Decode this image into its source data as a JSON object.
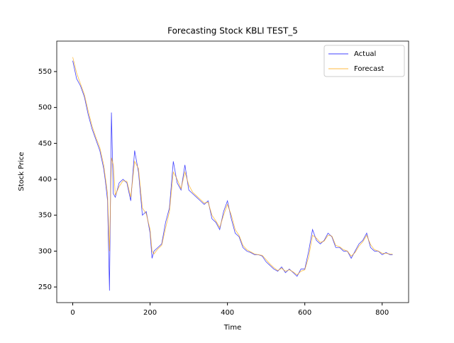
{
  "chart_data": {
    "type": "line",
    "title": "Forecasting Stock KBLI TEST_5",
    "xlabel": "Time",
    "ylabel": "Stock Price",
    "x": [
      0,
      10,
      20,
      30,
      40,
      50,
      60,
      70,
      80,
      85,
      90,
      95,
      100,
      105,
      110,
      120,
      130,
      140,
      150,
      160,
      170,
      180,
      190,
      200,
      205,
      210,
      220,
      230,
      240,
      250,
      260,
      270,
      280,
      290,
      300,
      310,
      320,
      330,
      340,
      350,
      360,
      370,
      380,
      390,
      400,
      410,
      420,
      430,
      440,
      450,
      460,
      470,
      480,
      490,
      500,
      510,
      520,
      530,
      540,
      550,
      560,
      570,
      580,
      590,
      600,
      610,
      620,
      630,
      640,
      650,
      660,
      670,
      680,
      690,
      700,
      710,
      720,
      730,
      740,
      750,
      760,
      770,
      780,
      790,
      800,
      810,
      820,
      827
    ],
    "series": [
      {
        "name": "Actual",
        "color": "#0000ff",
        "values": [
          565,
          540,
          530,
          515,
          490,
          470,
          455,
          440,
          415,
          395,
          370,
          245,
          493,
          380,
          375,
          395,
          400,
          395,
          370,
          440,
          410,
          350,
          355,
          325,
          290,
          300,
          305,
          310,
          340,
          360,
          425,
          395,
          385,
          420,
          385,
          380,
          375,
          370,
          365,
          370,
          345,
          340,
          330,
          355,
          370,
          345,
          325,
          320,
          305,
          300,
          298,
          295,
          295,
          293,
          285,
          280,
          275,
          272,
          278,
          270,
          275,
          270,
          265,
          275,
          275,
          300,
          330,
          315,
          310,
          315,
          325,
          320,
          305,
          305,
          300,
          300,
          290,
          300,
          310,
          315,
          325,
          305,
          300,
          300,
          295,
          298,
          295,
          295
        ]
      },
      {
        "name": "Forecast",
        "color": "#ffa500",
        "values": [
          570,
          548,
          533,
          518,
          495,
          474,
          458,
          444,
          420,
          400,
          380,
          300,
          430,
          420,
          378,
          390,
          398,
          397,
          375,
          425,
          415,
          360,
          352,
          330,
          300,
          296,
          303,
          308,
          332,
          355,
          410,
          400,
          387,
          410,
          392,
          382,
          377,
          372,
          367,
          368,
          350,
          342,
          333,
          350,
          365,
          350,
          330,
          322,
          308,
          302,
          299,
          296,
          295,
          294,
          288,
          282,
          277,
          273,
          276,
          272,
          274,
          271,
          267,
          272,
          274,
          292,
          322,
          318,
          312,
          314,
          322,
          321,
          308,
          306,
          302,
          300,
          293,
          298,
          307,
          313,
          322,
          309,
          302,
          300,
          297,
          297,
          296,
          296
        ]
      }
    ],
    "xlim": [
      -41.35,
      868.35
    ],
    "ylim": [
      228.3,
      592.4
    ],
    "xticks": [
      0,
      200,
      400,
      600,
      800
    ],
    "yticks": [
      250,
      300,
      350,
      400,
      450,
      500,
      550
    ],
    "legend": "upper right"
  }
}
